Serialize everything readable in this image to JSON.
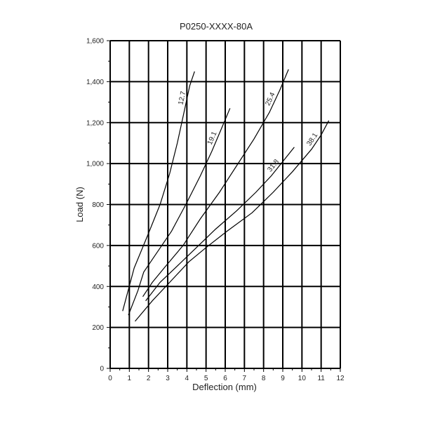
{
  "chart_data": {
    "type": "line",
    "title": "P0250-XXXX-80A",
    "xlabel": "Deflection (mm)",
    "ylabel": "Load (N)",
    "xlim": [
      0,
      12
    ],
    "ylim": [
      0,
      1600
    ],
    "xticks": [
      "0",
      "1",
      "2",
      "3",
      "4",
      "5",
      "6",
      "7",
      "8",
      "9",
      "10",
      "11",
      "12"
    ],
    "yticks": [
      "0",
      "200",
      "400",
      "600",
      "800",
      "1,000",
      "1,200",
      "1,400",
      "1,600"
    ],
    "grid": true,
    "series": [
      {
        "name": "12.7",
        "points": [
          [
            0.65,
            280
          ],
          [
            1.25,
            490
          ],
          [
            2.0,
            660
          ],
          [
            2.6,
            800
          ],
          [
            3.1,
            950
          ],
          [
            3.5,
            1100
          ],
          [
            3.85,
            1250
          ],
          [
            4.15,
            1380
          ],
          [
            4.4,
            1450
          ]
        ]
      },
      {
        "name": "19.1",
        "points": [
          [
            0.95,
            260
          ],
          [
            1.45,
            380
          ],
          [
            1.75,
            470
          ],
          [
            2.4,
            560
          ],
          [
            3.2,
            670
          ],
          [
            4.0,
            810
          ],
          [
            4.7,
            940
          ],
          [
            5.3,
            1060
          ],
          [
            5.8,
            1170
          ],
          [
            6.25,
            1270
          ]
        ]
      },
      {
        "name": "25.4",
        "points": [
          [
            1.7,
            350
          ],
          [
            2.2,
            420
          ],
          [
            2.9,
            500
          ],
          [
            3.8,
            600
          ],
          [
            4.7,
            730
          ],
          [
            5.7,
            860
          ],
          [
            6.6,
            990
          ],
          [
            7.5,
            1120
          ],
          [
            8.3,
            1250
          ],
          [
            8.85,
            1360
          ],
          [
            9.3,
            1460
          ]
        ]
      },
      {
        "name": "31.8",
        "points": [
          [
            1.85,
            330
          ],
          [
            2.6,
            420
          ],
          [
            3.5,
            500
          ],
          [
            4.5,
            590
          ],
          [
            5.5,
            680
          ],
          [
            6.6,
            770
          ],
          [
            7.6,
            860
          ],
          [
            8.4,
            940
          ],
          [
            9.0,
            1010
          ],
          [
            9.6,
            1080
          ]
        ]
      },
      {
        "name": "38.1",
        "points": [
          [
            1.3,
            230
          ],
          [
            2.2,
            330
          ],
          [
            3.2,
            430
          ],
          [
            4.1,
            520
          ],
          [
            5.0,
            590
          ],
          [
            6.1,
            670
          ],
          [
            7.4,
            760
          ],
          [
            8.5,
            860
          ],
          [
            9.5,
            960
          ],
          [
            10.5,
            1070
          ],
          [
            11.0,
            1140
          ],
          [
            11.4,
            1210
          ]
        ]
      }
    ]
  }
}
